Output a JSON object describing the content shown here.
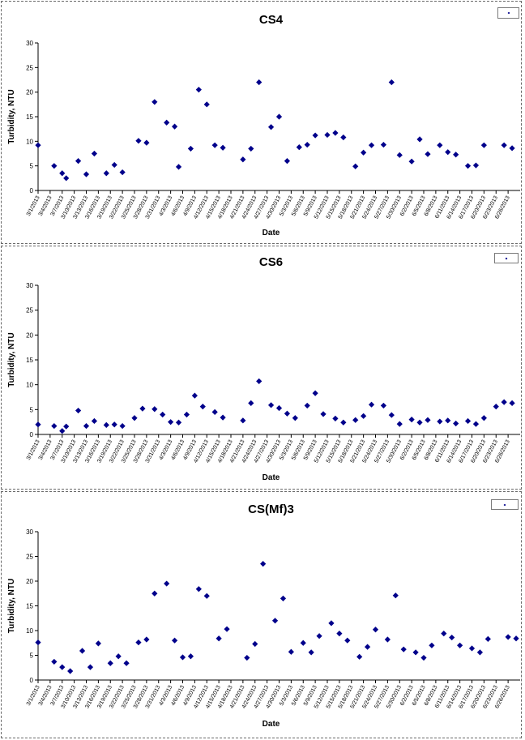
{
  "charts": [
    {
      "chart_data": {
        "type": "scatter",
        "title": "CS4",
        "xlabel": "Date",
        "ylabel": "Turbidity, NTU",
        "ylim": [
          0,
          30
        ],
        "yticks": [
          0,
          5,
          10,
          15,
          20,
          25,
          30
        ],
        "xlim": [
          "3/1/2013",
          "6/29/2013"
        ],
        "xticks": [
          "3/1/2013",
          "3/4/2013",
          "3/7/2013",
          "3/10/2013",
          "3/13/2013",
          "3/16/2013",
          "3/19/2013",
          "3/22/2013",
          "3/25/2013",
          "3/28/2013",
          "3/31/2013",
          "4/3/2013",
          "4/6/2013",
          "4/9/2013",
          "4/12/2013",
          "4/15/2013",
          "4/18/2013",
          "4/21/2013",
          "4/24/2013",
          "4/27/2013",
          "4/30/2013",
          "5/3/2013",
          "5/6/2013",
          "5/9/2013",
          "5/12/2013",
          "5/15/2013",
          "5/18/2013",
          "5/21/2013",
          "5/24/2013",
          "5/27/2013",
          "5/30/2013",
          "6/2/2013",
          "6/5/2013",
          "6/8/2013",
          "6/11/2013",
          "6/14/2013",
          "6/17/2013",
          "6/20/2013",
          "6/23/2013",
          "6/26/2013"
        ],
        "legend_position": "top-right",
        "grid": false,
        "marker_color": "#00008b",
        "points": [
          [
            "3/1/2013",
            9.2
          ],
          [
            "3/5/2013",
            5.0
          ],
          [
            "3/7/2013",
            3.5
          ],
          [
            "3/8/2013",
            2.5
          ],
          [
            "3/11/2013",
            6.0
          ],
          [
            "3/13/2013",
            3.3
          ],
          [
            "3/15/2013",
            7.5
          ],
          [
            "3/18/2013",
            3.5
          ],
          [
            "3/20/2013",
            5.2
          ],
          [
            "3/22/2013",
            3.7
          ],
          [
            "3/26/2013",
            10.1
          ],
          [
            "3/28/2013",
            9.7
          ],
          [
            "3/30/2013",
            18.0
          ],
          [
            "4/2/2013",
            13.8
          ],
          [
            "4/4/2013",
            13.0
          ],
          [
            "4/5/2013",
            4.8
          ],
          [
            "4/8/2013",
            8.5
          ],
          [
            "4/10/2013",
            20.5
          ],
          [
            "4/12/2013",
            17.5
          ],
          [
            "4/14/2013",
            9.2
          ],
          [
            "4/16/2013",
            8.7
          ],
          [
            "4/21/2013",
            6.3
          ],
          [
            "4/23/2013",
            8.5
          ],
          [
            "4/25/2013",
            22.0
          ],
          [
            "4/28/2013",
            12.9
          ],
          [
            "4/30/2013",
            15.0
          ],
          [
            "5/2/2013",
            6.0
          ],
          [
            "5/5/2013",
            8.8
          ],
          [
            "5/7/2013",
            9.3
          ],
          [
            "5/9/2013",
            11.2
          ],
          [
            "5/12/2013",
            11.3
          ],
          [
            "5/14/2013",
            11.7
          ],
          [
            "5/16/2013",
            10.8
          ],
          [
            "5/19/2013",
            4.9
          ],
          [
            "5/21/2013",
            7.7
          ],
          [
            "5/23/2013",
            9.2
          ],
          [
            "5/26/2013",
            9.3
          ],
          [
            "5/28/2013",
            22.0
          ],
          [
            "5/30/2013",
            7.2
          ],
          [
            "6/2/2013",
            5.9
          ],
          [
            "6/4/2013",
            10.4
          ],
          [
            "6/6/2013",
            7.4
          ],
          [
            "6/9/2013",
            9.2
          ],
          [
            "6/11/2013",
            7.8
          ],
          [
            "6/13/2013",
            7.3
          ],
          [
            "6/16/2013",
            5.0
          ],
          [
            "6/18/2013",
            5.1
          ],
          [
            "6/20/2013",
            9.2
          ],
          [
            "6/25/2013",
            9.2
          ],
          [
            "6/27/2013",
            8.6
          ]
        ]
      }
    },
    {
      "chart_data": {
        "type": "scatter",
        "title": "CS6",
        "xlabel": "Date",
        "ylabel": "Turbidity, NTU",
        "ylim": [
          0,
          30
        ],
        "yticks": [
          0,
          5,
          10,
          15,
          20,
          25,
          30
        ],
        "xlim": [
          "3/1/2013",
          "6/29/2013"
        ],
        "xticks": [
          "3/1/2013",
          "3/4/2013",
          "3/7/2013",
          "3/10/2013",
          "3/13/2013",
          "3/16/2013",
          "3/19/2013",
          "3/22/2013",
          "3/25/2013",
          "3/28/2013",
          "3/31/2013",
          "4/3/2013",
          "4/6/2013",
          "4/9/2013",
          "4/12/2013",
          "4/15/2013",
          "4/18/2013",
          "4/21/2013",
          "4/24/2013",
          "4/27/2013",
          "4/30/2013",
          "5/3/2013",
          "5/6/2013",
          "5/9/2013",
          "5/12/2013",
          "5/15/2013",
          "5/18/2013",
          "5/21/2013",
          "5/24/2013",
          "5/27/2013",
          "5/30/2013",
          "6/2/2013",
          "6/5/2013",
          "6/8/2013",
          "6/11/2013",
          "6/14/2013",
          "6/17/2013",
          "6/20/2013",
          "6/23/2013",
          "6/26/2013"
        ],
        "legend_position": "top-right",
        "grid": false,
        "marker_color": "#00008b",
        "points": [
          [
            "3/1/2013",
            2.0
          ],
          [
            "3/5/2013",
            1.7
          ],
          [
            "3/7/2013",
            0.7
          ],
          [
            "3/8/2013",
            1.6
          ],
          [
            "3/11/2013",
            4.8
          ],
          [
            "3/13/2013",
            1.7
          ],
          [
            "3/15/2013",
            2.7
          ],
          [
            "3/18/2013",
            1.9
          ],
          [
            "3/20/2013",
            2.0
          ],
          [
            "3/22/2013",
            1.7
          ],
          [
            "3/25/2013",
            3.3
          ],
          [
            "3/27/2013",
            5.2
          ],
          [
            "3/30/2013",
            5.1
          ],
          [
            "4/1/2013",
            4.0
          ],
          [
            "4/3/2013",
            2.5
          ],
          [
            "4/5/2013",
            2.4
          ],
          [
            "4/7/2013",
            4.0
          ],
          [
            "4/9/2013",
            7.8
          ],
          [
            "4/11/2013",
            5.6
          ],
          [
            "4/14/2013",
            4.5
          ],
          [
            "4/16/2013",
            3.4
          ],
          [
            "4/21/2013",
            2.8
          ],
          [
            "4/23/2013",
            6.3
          ],
          [
            "4/25/2013",
            10.7
          ],
          [
            "4/28/2013",
            5.9
          ],
          [
            "4/30/2013",
            5.3
          ],
          [
            "5/2/2013",
            4.2
          ],
          [
            "5/4/2013",
            3.3
          ],
          [
            "5/7/2013",
            5.8
          ],
          [
            "5/9/2013",
            8.3
          ],
          [
            "5/11/2013",
            4.1
          ],
          [
            "5/14/2013",
            3.2
          ],
          [
            "5/16/2013",
            2.4
          ],
          [
            "5/19/2013",
            2.9
          ],
          [
            "5/21/2013",
            3.7
          ],
          [
            "5/23/2013",
            6.0
          ],
          [
            "5/26/2013",
            5.8
          ],
          [
            "5/28/2013",
            3.9
          ],
          [
            "5/30/2013",
            2.1
          ],
          [
            "6/2/2013",
            3.0
          ],
          [
            "6/4/2013",
            2.4
          ],
          [
            "6/6/2013",
            2.9
          ],
          [
            "6/9/2013",
            2.6
          ],
          [
            "6/11/2013",
            2.8
          ],
          [
            "6/13/2013",
            2.2
          ],
          [
            "6/16/2013",
            2.7
          ],
          [
            "6/18/2013",
            2.1
          ],
          [
            "6/20/2013",
            3.3
          ],
          [
            "6/23/2013",
            5.6
          ],
          [
            "6/25/2013",
            6.5
          ],
          [
            "6/27/2013",
            6.3
          ]
        ]
      }
    },
    {
      "chart_data": {
        "type": "scatter",
        "title": "CS(Mf)3",
        "xlabel": "Date",
        "ylabel": "Turbidity, NTU",
        "ylim": [
          0,
          30
        ],
        "yticks": [
          0,
          5,
          10,
          15,
          20,
          25,
          30
        ],
        "xlim": [
          "3/1/2013",
          "6/29/2013"
        ],
        "xticks": [
          "3/1/2013",
          "3/4/2013",
          "3/7/2013",
          "3/10/2013",
          "3/13/2013",
          "3/16/2013",
          "3/19/2013",
          "3/22/2013",
          "3/25/2013",
          "3/28/2013",
          "3/31/2013",
          "4/3/2013",
          "4/6/2013",
          "4/9/2013",
          "4/12/2013",
          "4/15/2013",
          "4/18/2013",
          "4/21/2013",
          "4/24/2013",
          "4/27/2013",
          "4/30/2013",
          "5/3/2013",
          "5/6/2013",
          "5/9/2013",
          "5/12/2013",
          "5/15/2013",
          "5/18/2013",
          "5/21/2013",
          "5/24/2013",
          "5/27/2013",
          "5/30/2013",
          "6/2/2013",
          "6/5/2013",
          "6/8/2013",
          "6/11/2013",
          "6/14/2013",
          "6/17/2013",
          "6/20/2013",
          "6/23/2013",
          "6/26/2013"
        ],
        "legend_position": "top-right",
        "grid": false,
        "marker_color": "#00008b",
        "points": [
          [
            "3/1/2013",
            7.6
          ],
          [
            "3/5/2013",
            3.7
          ],
          [
            "3/7/2013",
            2.6
          ],
          [
            "3/9/2013",
            1.8
          ],
          [
            "3/12/2013",
            5.9
          ],
          [
            "3/14/2013",
            2.6
          ],
          [
            "3/16/2013",
            7.4
          ],
          [
            "3/19/2013",
            3.4
          ],
          [
            "3/21/2013",
            4.8
          ],
          [
            "3/23/2013",
            3.4
          ],
          [
            "3/26/2013",
            7.6
          ],
          [
            "3/28/2013",
            8.2
          ],
          [
            "3/30/2013",
            17.5
          ],
          [
            "4/2/2013",
            19.5
          ],
          [
            "4/4/2013",
            8.0
          ],
          [
            "4/6/2013",
            4.6
          ],
          [
            "4/8/2013",
            4.8
          ],
          [
            "4/10/2013",
            18.4
          ],
          [
            "4/12/2013",
            17.0
          ],
          [
            "4/15/2013",
            8.4
          ],
          [
            "4/17/2013",
            10.3
          ],
          [
            "4/22/2013",
            4.5
          ],
          [
            "4/24/2013",
            7.3
          ],
          [
            "4/26/2013",
            23.5
          ],
          [
            "4/29/2013",
            12.0
          ],
          [
            "5/1/2013",
            16.5
          ],
          [
            "5/3/2013",
            5.7
          ],
          [
            "5/6/2013",
            7.5
          ],
          [
            "5/8/2013",
            5.6
          ],
          [
            "5/10/2013",
            8.9
          ],
          [
            "5/13/2013",
            11.5
          ],
          [
            "5/15/2013",
            9.4
          ],
          [
            "5/17/2013",
            8.0
          ],
          [
            "5/20/2013",
            4.7
          ],
          [
            "5/22/2013",
            6.7
          ],
          [
            "5/24/2013",
            10.2
          ],
          [
            "5/27/2013",
            8.2
          ],
          [
            "5/29/2013",
            17.1
          ],
          [
            "5/31/2013",
            6.2
          ],
          [
            "6/3/2013",
            5.6
          ],
          [
            "6/5/2013",
            4.5
          ],
          [
            "6/7/2013",
            7.0
          ],
          [
            "6/10/2013",
            9.4
          ],
          [
            "6/12/2013",
            8.6
          ],
          [
            "6/14/2013",
            7.0
          ],
          [
            "6/17/2013",
            6.4
          ],
          [
            "6/19/2013",
            5.6
          ],
          [
            "6/21/2013",
            8.3
          ],
          [
            "6/26/2013",
            8.7
          ],
          [
            "6/28/2013",
            8.4
          ]
        ]
      }
    }
  ]
}
